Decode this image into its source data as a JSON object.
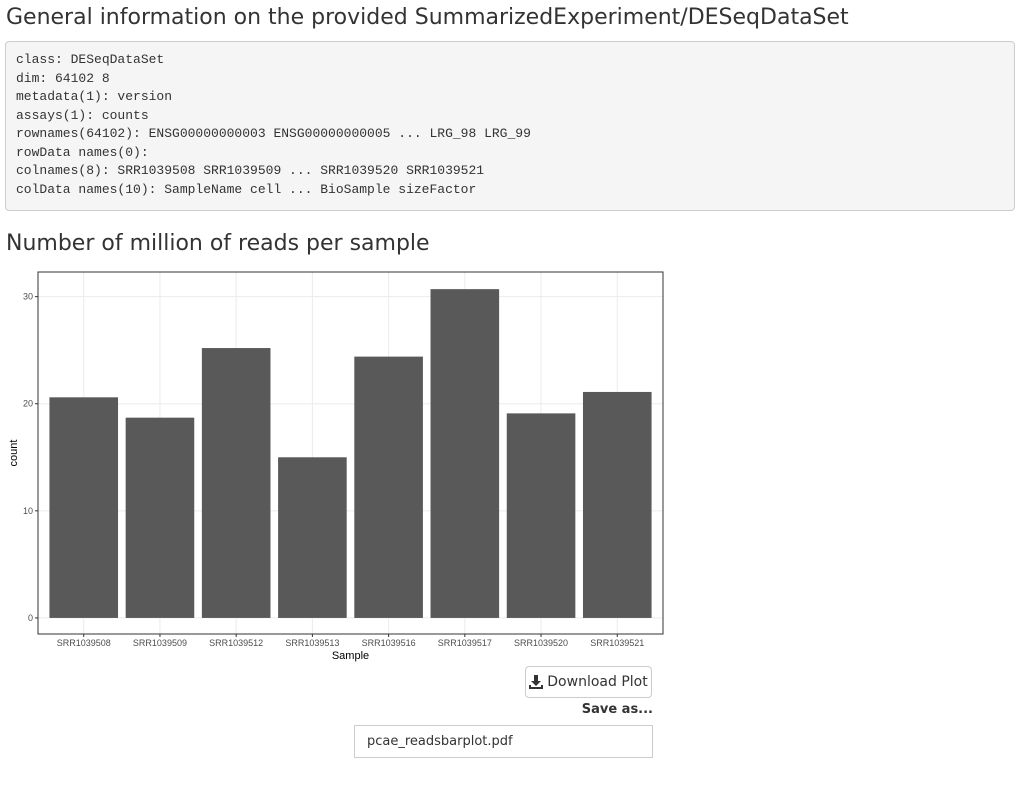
{
  "info": {
    "title": "General information on the provided SummarizedExperiment/DESeqDataSet",
    "lines": [
      "class: DESeqDataSet",
      "dim: 64102 8",
      "metadata(1): version",
      "assays(1): counts",
      "rownames(64102): ENSG00000000003 ENSG00000000005 ... LRG_98 LRG_99",
      "rowData names(0):",
      "colnames(8): SRR1039508 SRR1039509 ... SRR1039520 SRR1039521",
      "colData names(10): SampleName cell ... BioSample sizeFactor"
    ]
  },
  "plot_title": "Number of million of reads per sample",
  "chart_data": {
    "type": "bar",
    "x_label": "Sample",
    "y_label": "count",
    "categories": [
      "SRR1039508",
      "SRR1039509",
      "SRR1039512",
      "SRR1039513",
      "SRR1039516",
      "SRR1039517",
      "SRR1039520",
      "SRR1039521"
    ],
    "values": [
      20.6,
      18.7,
      25.2,
      15.0,
      24.4,
      30.7,
      19.1,
      21.1
    ],
    "color": "#595959",
    "ylim": [
      -1.5,
      32.3
    ],
    "yticks": [
      0,
      10,
      20,
      30
    ],
    "grid": true
  },
  "download_button": "Download Plot",
  "save_label": "Save as...",
  "filename": "pcae_readsbarplot.pdf"
}
